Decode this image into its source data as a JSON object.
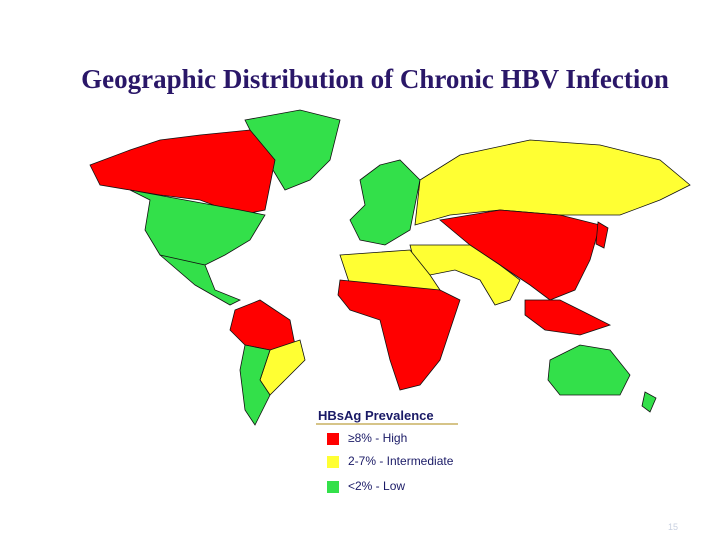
{
  "title": "Geographic Distribution of Chronic HBV Infection",
  "legend": {
    "title": "HBsAg Prevalence",
    "items": [
      {
        "label": "≥8% - High",
        "color": "#ff0000"
      },
      {
        "label": "2-7% - Intermediate",
        "color": "#ffff33"
      },
      {
        "label": "<2% - Low",
        "color": "#33e04a"
      }
    ]
  },
  "page_number": "15"
}
